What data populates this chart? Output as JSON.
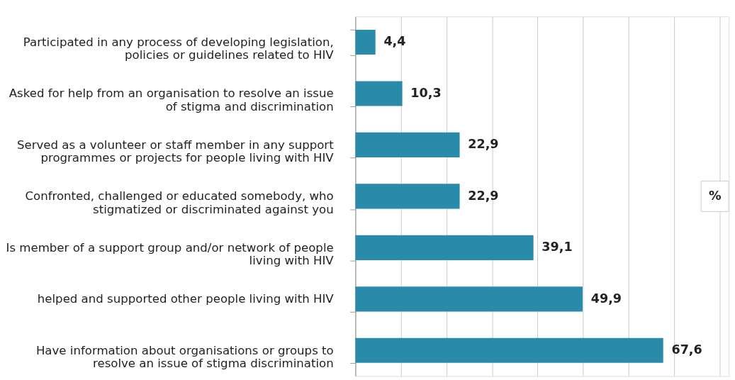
{
  "chart_data": {
    "type": "bar",
    "orientation": "horizontal",
    "categories": [
      "Participated in any process of developing legislation, policies or guidelines related to HIV",
      "Asked for help from an organisation to resolve an issue of stigma and discrimination",
      "Served as a volunteer or staff member in any support programmes or projects for people living with HIV",
      "Confronted, challenged or educated somebody, who stigmatized or discriminated against you",
      "Is member of a support group and/or network of people living with HIV",
      "helped and supported other people living with HIV",
      "Have information about  organisations or groups to resolve an issue of stigma discrimination"
    ],
    "values": [
      4.4,
      10.3,
      22.9,
      22.9,
      39.1,
      49.9,
      67.6
    ],
    "value_labels": [
      "4,4",
      "10,3",
      "22,9",
      "22,9",
      "39,1",
      "49,9",
      "67,6"
    ],
    "color": "#2a8aa9",
    "xlim": [
      0,
      82
    ],
    "xticks": [
      {
        "value": 0,
        "label": null
      },
      {
        "value": 10,
        "label": null
      },
      {
        "value": 20,
        "label": null
      },
      {
        "value": 30,
        "label": null
      },
      {
        "value": 40,
        "label": null
      },
      {
        "value": 50,
        "label": null
      },
      {
        "value": 60,
        "label": null
      },
      {
        "value": 70,
        "label": null
      },
      {
        "value": 80,
        "label": null
      }
    ],
    "grid": "x",
    "tick_labels": "y",
    "annotations": [
      "%"
    ]
  }
}
